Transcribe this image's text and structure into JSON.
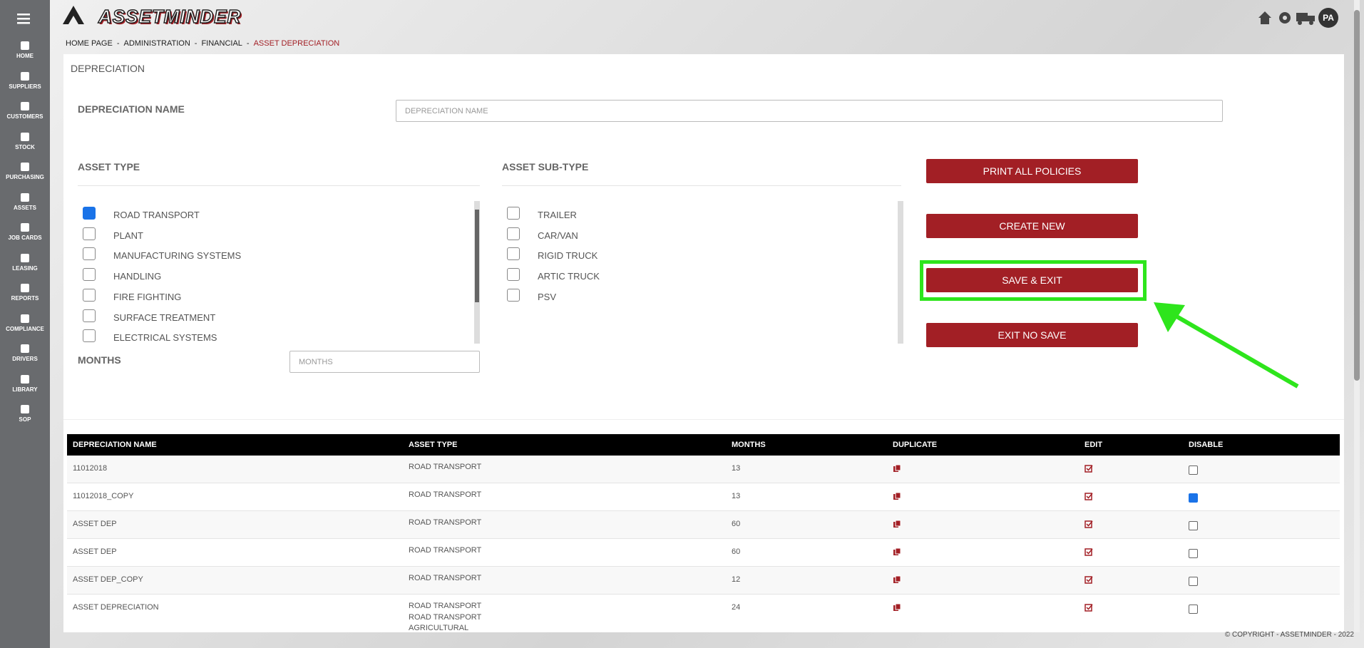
{
  "app": {
    "logo": "ASSETMINDER",
    "user_initials": "PA"
  },
  "sidebar": [
    "HOME",
    "SUPPLIERS",
    "CUSTOMERS",
    "STOCK",
    "PURCHASING",
    "ASSETS",
    "JOB CARDS",
    "LEASING",
    "REPORTS",
    "COMPLIANCE",
    "DRIVERS",
    "LIBRARY",
    "SOP"
  ],
  "breadcrumb": {
    "separator": "-",
    "items": [
      "HOME PAGE",
      "ADMINISTRATION",
      "FINANCIAL",
      "ASSET DEPRECIATION"
    ]
  },
  "form": {
    "title": "DEPRECIATION",
    "name_label": "DEPRECIATION NAME",
    "name_placeholder": "DEPRECIATION NAME",
    "asset_type_label": "ASSET TYPE",
    "asset_types": [
      {
        "label": "ROAD TRANSPORT",
        "checked": true
      },
      {
        "label": "PLANT",
        "checked": false
      },
      {
        "label": "MANUFACTURING SYSTEMS",
        "checked": false
      },
      {
        "label": "HANDLING",
        "checked": false
      },
      {
        "label": "FIRE FIGHTING",
        "checked": false
      },
      {
        "label": "SURFACE TREATMENT",
        "checked": false
      },
      {
        "label": "ELECTRICAL SYSTEMS",
        "checked": false
      }
    ],
    "sub_type_label": "ASSET SUB-TYPE",
    "sub_types": [
      {
        "label": "TRAILER",
        "checked": false
      },
      {
        "label": "CAR/VAN",
        "checked": false
      },
      {
        "label": "RIGID TRUCK",
        "checked": false
      },
      {
        "label": "ARTIC TRUCK",
        "checked": false
      },
      {
        "label": "PSV",
        "checked": false
      }
    ],
    "months_label": "MONTHS",
    "months_placeholder": "MONTHS",
    "buttons": [
      "PRINT ALL POLICIES",
      "CREATE NEW",
      "SAVE & EXIT",
      "EXIT NO SAVE"
    ]
  },
  "table": {
    "columns": [
      "DEPRECIATION NAME",
      "ASSET TYPE",
      "MONTHS",
      "DUPLICATE",
      "EDIT",
      "DISABLE"
    ],
    "rows": [
      {
        "name": "11012018",
        "asset_types": [
          "ROAD TRANSPORT"
        ],
        "months": "13",
        "disabled": false
      },
      {
        "name": "11012018_COPY",
        "asset_types": [
          "ROAD TRANSPORT"
        ],
        "months": "13",
        "disabled": true
      },
      {
        "name": "ASSET DEP",
        "asset_types": [
          "ROAD TRANSPORT"
        ],
        "months": "60",
        "disabled": false
      },
      {
        "name": "ASSET DEP",
        "asset_types": [
          "ROAD TRANSPORT"
        ],
        "months": "60",
        "disabled": false
      },
      {
        "name": "ASSET DEP_COPY",
        "asset_types": [
          "ROAD TRANSPORT"
        ],
        "months": "12",
        "disabled": false
      },
      {
        "name": "ASSET DEPRECIATION",
        "asset_types": [
          "ROAD TRANSPORT",
          "ROAD TRANSPORT",
          "AGRICULTURAL"
        ],
        "months": "24",
        "disabled": false
      }
    ]
  },
  "footer": {
    "copyright": "© COPYRIGHT - ASSETMINDER - 2022"
  }
}
